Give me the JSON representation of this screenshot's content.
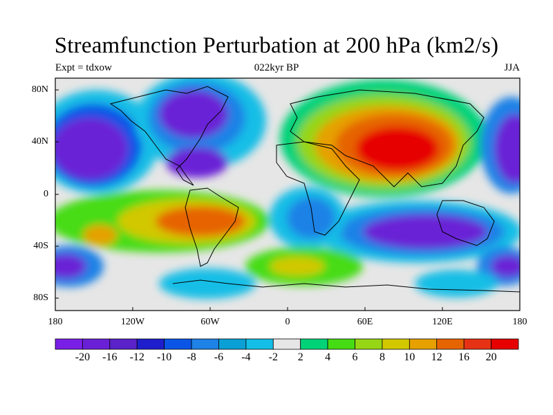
{
  "title": "Streamfunction Perturbation at 200 hPa (km2/s)",
  "left_label": "Expt = tdxow",
  "center_label": "022kyr BP",
  "right_label": "JJA",
  "lat_labels": [
    "80N",
    "40N",
    "0",
    "40S",
    "80S"
  ],
  "lon_labels": [
    "180",
    "120W",
    "60W",
    "0",
    "60E",
    "120E",
    "180"
  ],
  "colorbar": {
    "labels": [
      "-20",
      "-16",
      "-12",
      "-10",
      "-8",
      "-6",
      "-4",
      "-2",
      "2",
      "4",
      "6",
      "8",
      "10",
      "12",
      "16",
      "20"
    ],
    "colors": [
      "#7a1fe6",
      "#6a20d6",
      "#5a22c8",
      "#1e1ecc",
      "#0a55e6",
      "#1e82e6",
      "#0aa0d6",
      "#14bee6",
      "#e6e6e6",
      "#00d278",
      "#46dc14",
      "#96d614",
      "#d2c800",
      "#e6a000",
      "#e66400",
      "#e63214",
      "#e60000"
    ]
  }
}
